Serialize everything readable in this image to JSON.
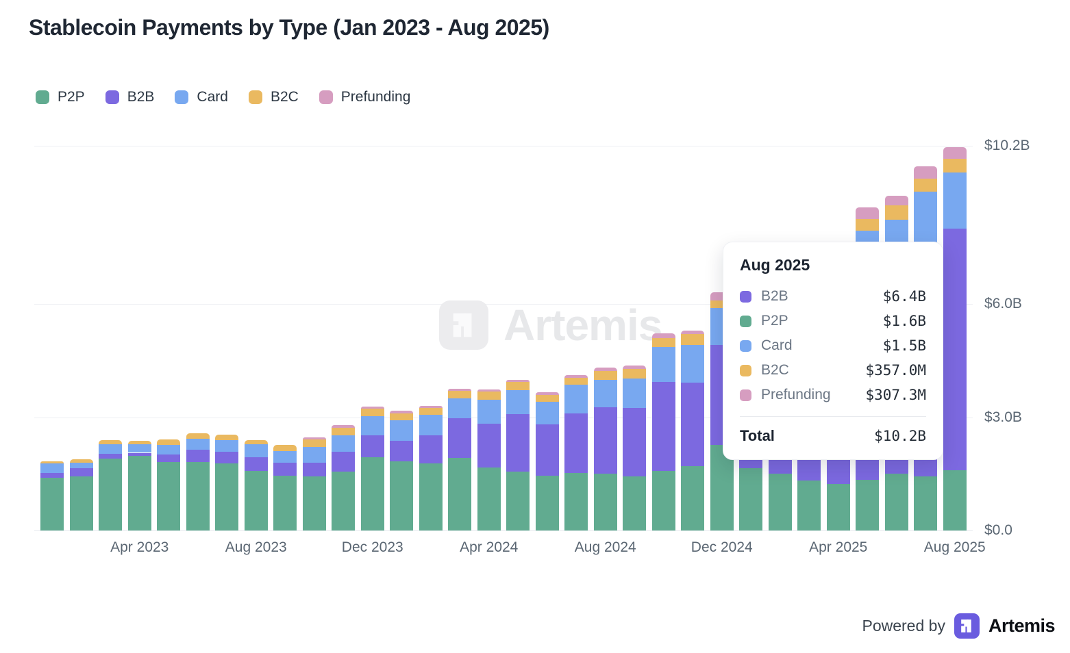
{
  "header": {
    "title": "Stablecoin Payments by Type (Jan 2023 - Aug 2025)"
  },
  "legend": {
    "items": [
      {
        "label": "P2P",
        "color": "#61ab90"
      },
      {
        "label": "B2B",
        "color": "#7c69e0"
      },
      {
        "label": "Card",
        "color": "#78a8f0"
      },
      {
        "label": "B2C",
        "color": "#eab960"
      },
      {
        "label": "Prefunding",
        "color": "#d69dc0"
      }
    ]
  },
  "chart_data": {
    "type": "bar",
    "stacked": true,
    "title": "Stablecoin Payments by Type (Jan 2023 - Aug 2025)",
    "unit": "USD billions",
    "grid": "horizontal",
    "legend_position": "top-left",
    "ylim": [
      0,
      10.2
    ],
    "categories": [
      "Jan 2023",
      "Feb 2023",
      "Mar 2023",
      "Apr 2023",
      "May 2023",
      "Jun 2023",
      "Jul 2023",
      "Aug 2023",
      "Sep 2023",
      "Oct 2023",
      "Nov 2023",
      "Dec 2023",
      "Jan 2024",
      "Feb 2024",
      "Mar 2024",
      "Apr 2024",
      "May 2024",
      "Jun 2024",
      "Jul 2024",
      "Aug 2024",
      "Sep 2024",
      "Oct 2024",
      "Nov 2024",
      "Dec 2024",
      "Jan 2025",
      "Feb 2025",
      "Mar 2025",
      "Apr 2025",
      "May 2025",
      "Jun 2025",
      "Jul 2025",
      "Aug 2025"
    ],
    "series": [
      {
        "name": "P2P",
        "color": "#61ab90",
        "values": [
          1.4,
          1.44,
          1.9,
          1.97,
          1.82,
          1.82,
          1.78,
          1.58,
          1.45,
          1.44,
          1.56,
          1.94,
          1.83,
          1.78,
          1.93,
          1.67,
          1.56,
          1.45,
          1.53,
          1.51,
          1.44,
          1.58,
          1.71,
          2.27,
          1.65,
          1.5,
          1.33,
          1.23,
          1.35,
          1.51,
          1.44,
          1.6
        ]
      },
      {
        "name": "B2B",
        "color": "#7c69e0",
        "values": [
          0.13,
          0.22,
          0.13,
          0.09,
          0.2,
          0.32,
          0.31,
          0.36,
          0.35,
          0.35,
          0.53,
          0.59,
          0.55,
          0.74,
          1.04,
          1.16,
          1.52,
          1.36,
          1.57,
          1.75,
          1.81,
          2.35,
          2.21,
          2.64,
          3.3,
          3.6,
          3.9,
          4.2,
          5.3,
          5.38,
          6.09,
          6.4
        ]
      },
      {
        "name": "Card",
        "color": "#78a8f0",
        "values": [
          0.24,
          0.13,
          0.26,
          0.23,
          0.25,
          0.3,
          0.31,
          0.35,
          0.31,
          0.43,
          0.44,
          0.5,
          0.55,
          0.55,
          0.53,
          0.64,
          0.64,
          0.61,
          0.76,
          0.74,
          0.78,
          0.93,
          0.99,
          0.99,
          1.05,
          1.2,
          1.3,
          1.4,
          1.3,
          1.35,
          1.45,
          1.5
        ]
      },
      {
        "name": "B2C",
        "color": "#eab960",
        "values": [
          0.07,
          0.09,
          0.11,
          0.09,
          0.14,
          0.13,
          0.14,
          0.11,
          0.15,
          0.2,
          0.2,
          0.2,
          0.18,
          0.18,
          0.2,
          0.22,
          0.21,
          0.18,
          0.18,
          0.22,
          0.25,
          0.24,
          0.29,
          0.2,
          0.28,
          0.3,
          0.32,
          0.35,
          0.31,
          0.38,
          0.35,
          0.36
        ]
      },
      {
        "name": "Prefunding",
        "color": "#d69dc0",
        "values": [
          0,
          0,
          0,
          0,
          0,
          0,
          0,
          0,
          0,
          0.04,
          0.06,
          0.06,
          0.06,
          0.06,
          0.06,
          0.04,
          0.06,
          0.07,
          0.08,
          0.1,
          0.09,
          0.12,
          0.1,
          0.22,
          0.22,
          0.25,
          0.28,
          0.3,
          0.3,
          0.26,
          0.32,
          0.31
        ]
      }
    ],
    "y_ticks": [
      {
        "value": 10.2,
        "label": "$10.2B"
      },
      {
        "value": 6.0,
        "label": "$6.0B"
      },
      {
        "value": 3.0,
        "label": "$3.0B"
      },
      {
        "value": 0.0,
        "label": "$0.0"
      }
    ],
    "x_tick_labels": [
      {
        "index": 3,
        "label": "Apr 2023"
      },
      {
        "index": 7,
        "label": "Aug 2023"
      },
      {
        "index": 11,
        "label": "Dec 2023"
      },
      {
        "index": 15,
        "label": "Apr 2024"
      },
      {
        "index": 19,
        "label": "Aug 2024"
      },
      {
        "index": 23,
        "label": "Dec 2024"
      },
      {
        "index": 27,
        "label": "Apr 2025"
      },
      {
        "index": 31,
        "label": "Aug 2025"
      }
    ]
  },
  "tooltip": {
    "title": "Aug 2025",
    "rows": [
      {
        "label": "B2B",
        "value": "$6.4B",
        "color": "#7c69e0"
      },
      {
        "label": "P2P",
        "value": "$1.6B",
        "color": "#61ab90"
      },
      {
        "label": "Card",
        "value": "$1.5B",
        "color": "#78a8f0"
      },
      {
        "label": "B2C",
        "value": "$357.0M",
        "color": "#eab960"
      },
      {
        "label": "Prefunding",
        "value": "$307.3M",
        "color": "#d69dc0"
      }
    ],
    "total_label": "Total",
    "total_value": "$10.2B"
  },
  "watermark": {
    "text": "Artemis"
  },
  "footer": {
    "powered_by": "Powered by",
    "brand": "Artemis"
  }
}
